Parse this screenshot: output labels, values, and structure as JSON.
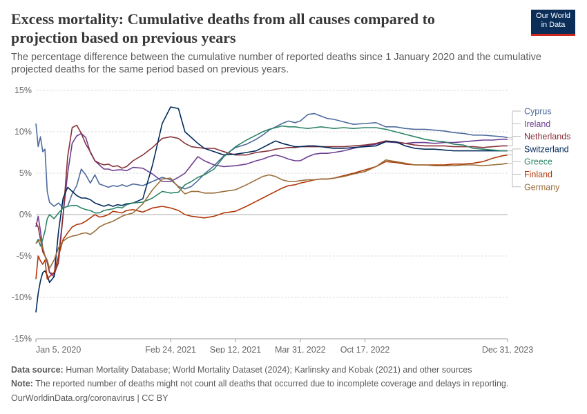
{
  "header": {
    "title": "Excess mortality: Cumulative deaths from all causes compared to projection based on previous years",
    "subtitle": "The percentage difference between the cumulative number of reported deaths since 1 January 2020 and the cumulative projected deaths for the same period based on previous years.",
    "logo_line1": "Our World",
    "logo_line2": "in Data"
  },
  "footer": {
    "source_label": "Data source:",
    "source_text": "Human Mortality Database; World Mortality Dataset (2024); Karlinsky and Kobak (2021) and other sources",
    "note_label": "Note:",
    "note_text": "The reported number of deaths might not count all deaths that occurred due to incomplete coverage and delays in reporting.",
    "credit": "OurWorldinData.org/coronavirus | CC BY"
  },
  "chart_data": {
    "type": "line",
    "title": "Excess mortality: Cumulative deaths from all causes compared to projection based on previous years",
    "xlabel": "",
    "ylabel": "",
    "x_unit": "days since 5 Jan 2020",
    "xlim": [
      0,
      1456
    ],
    "ylim": [
      -15,
      15
    ],
    "y_ticks": [
      -15,
      -10,
      -5,
      0,
      5,
      10,
      15
    ],
    "y_tick_labels": [
      "-15%",
      "-10%",
      "-5%",
      "0%",
      "5%",
      "10%",
      "15%"
    ],
    "x_ticks": [
      0,
      416,
      616,
      816,
      1016,
      1456
    ],
    "x_tick_labels": [
      "Jan 5, 2020",
      "Feb 24, 2021",
      "Sep 12, 2021",
      "Mar 31, 2022",
      "Oct 17, 2022",
      "Dec 31, 2023"
    ],
    "grid": true,
    "legend_position": "right",
    "series": [
      {
        "name": "Cyprus",
        "color": "#4c6a9c",
        "x": [
          0,
          7,
          14,
          21,
          28,
          35,
          42,
          56,
          70,
          84,
          98,
          112,
          126,
          140,
          154,
          168,
          182,
          196,
          210,
          224,
          238,
          252,
          266,
          280,
          300,
          330,
          360,
          390,
          416,
          440,
          460,
          480,
          500,
          520,
          550,
          580,
          616,
          650,
          680,
          700,
          720,
          740,
          760,
          780,
          800,
          816,
          840,
          860,
          880,
          900,
          920,
          950,
          980,
          1016,
          1050,
          1080,
          1110,
          1140,
          1170,
          1200,
          1230,
          1260,
          1290,
          1320,
          1350,
          1380,
          1410,
          1440,
          1456
        ],
        "values": [
          11.0,
          8.2,
          9.4,
          7.6,
          7.9,
          2.8,
          1.5,
          1.0,
          1.4,
          0.8,
          1.0,
          2.5,
          3.5,
          5.5,
          4.8,
          3.8,
          4.8,
          3.7,
          3.5,
          3.3,
          3.5,
          3.4,
          3.6,
          3.4,
          3.7,
          3.5,
          4.0,
          4.5,
          4.2,
          3.4,
          3.1,
          3.4,
          4.1,
          4.9,
          5.9,
          7.1,
          8.1,
          8.5,
          9.1,
          9.6,
          10.2,
          10.6,
          11.0,
          11.3,
          11.1,
          11.3,
          12.1,
          12.2,
          11.9,
          11.6,
          11.5,
          11.2,
          10.9,
          11.0,
          11.1,
          10.6,
          10.6,
          10.4,
          10.3,
          10.3,
          10.2,
          10.1,
          9.9,
          9.8,
          9.6,
          9.6,
          9.5,
          9.4,
          9.3
        ]
      },
      {
        "name": "Ireland",
        "color": "#6d3e91",
        "x": [
          0,
          7,
          14,
          21,
          28,
          35,
          42,
          56,
          70,
          84,
          98,
          112,
          126,
          140,
          154,
          168,
          182,
          196,
          210,
          224,
          238,
          252,
          266,
          280,
          300,
          330,
          360,
          390,
          416,
          440,
          460,
          480,
          500,
          520,
          550,
          580,
          616,
          650,
          680,
          700,
          720,
          740,
          760,
          780,
          800,
          816,
          840,
          860,
          880,
          900,
          920,
          950,
          980,
          1016,
          1050,
          1080,
          1110,
          1140,
          1170,
          1200,
          1230,
          1260,
          1290,
          1320,
          1350,
          1380,
          1410,
          1440,
          1456
        ],
        "values": [
          -1.5,
          -0.2,
          -2.0,
          -4.0,
          -5.0,
          -5.5,
          -7.0,
          -7.5,
          -5.0,
          0.0,
          5.0,
          8.6,
          9.5,
          9.8,
          9.3,
          7.5,
          6.5,
          6.0,
          5.5,
          5.5,
          5.3,
          5.4,
          5.4,
          5.3,
          5.7,
          5.6,
          4.9,
          4.0,
          4.0,
          4.5,
          5.0,
          6.0,
          7.0,
          6.5,
          6.0,
          5.8,
          5.9,
          6.1,
          6.5,
          6.7,
          7.0,
          7.2,
          7.0,
          6.7,
          6.5,
          6.5,
          7.0,
          7.3,
          7.4,
          7.4,
          7.5,
          7.7,
          8.0,
          8.3,
          8.5,
          8.8,
          8.7,
          8.6,
          8.7,
          8.7,
          8.6,
          8.7,
          8.7,
          8.8,
          8.9,
          9.0,
          9.0,
          9.1,
          9.1
        ]
      },
      {
        "name": "Netherlands",
        "color": "#883039",
        "x": [
          0,
          7,
          14,
          21,
          28,
          35,
          42,
          56,
          70,
          84,
          98,
          112,
          126,
          140,
          154,
          168,
          182,
          196,
          210,
          224,
          238,
          252,
          266,
          280,
          300,
          330,
          360,
          390,
          416,
          440,
          460,
          480,
          500,
          520,
          550,
          580,
          616,
          650,
          680,
          700,
          720,
          740,
          760,
          780,
          800,
          816,
          840,
          860,
          880,
          900,
          920,
          950,
          980,
          1016,
          1050,
          1080,
          1110,
          1140,
          1170,
          1200,
          1230,
          1260,
          1290,
          1320,
          1350,
          1380,
          1410,
          1440,
          1456
        ],
        "values": [
          -1.0,
          -1.5,
          -3.0,
          -4.5,
          -5.0,
          -5.8,
          -7.0,
          -7.2,
          -5.8,
          0.0,
          7.0,
          10.5,
          10.8,
          9.8,
          8.5,
          7.6,
          6.5,
          6.2,
          6.0,
          6.1,
          5.8,
          5.9,
          5.6,
          5.8,
          6.5,
          7.2,
          8.1,
          9.2,
          9.4,
          9.2,
          8.6,
          8.2,
          8.1,
          8.0,
          8.0,
          7.6,
          7.2,
          7.2,
          7.5,
          7.6,
          7.7,
          7.9,
          8.0,
          8.1,
          8.1,
          8.2,
          8.2,
          8.2,
          8.2,
          8.2,
          8.2,
          8.2,
          8.3,
          8.4,
          8.6,
          8.9,
          8.8,
          8.6,
          8.4,
          8.3,
          8.3,
          8.3,
          8.2,
          8.2,
          8.2,
          8.1,
          8.2,
          8.3,
          8.3
        ]
      },
      {
        "name": "Switzerland",
        "color": "#00295b",
        "x": [
          0,
          7,
          14,
          21,
          28,
          35,
          42,
          56,
          70,
          84,
          98,
          112,
          126,
          140,
          154,
          168,
          182,
          196,
          210,
          224,
          238,
          252,
          266,
          280,
          300,
          330,
          360,
          390,
          416,
          440,
          460,
          480,
          500,
          520,
          550,
          580,
          616,
          650,
          680,
          700,
          720,
          740,
          760,
          780,
          800,
          816,
          840,
          860,
          880,
          900,
          920,
          950,
          980,
          1016,
          1050,
          1080,
          1110,
          1140,
          1170,
          1200,
          1230,
          1260,
          1290,
          1320,
          1350,
          1380,
          1410,
          1440,
          1456
        ],
        "values": [
          -11.8,
          -9.5,
          -8.0,
          -7.0,
          -6.8,
          -7.3,
          -8.2,
          -7.5,
          -2.0,
          2.0,
          3.3,
          2.8,
          2.3,
          2.0,
          2.0,
          1.8,
          1.4,
          1.2,
          1.0,
          1.2,
          1.0,
          1.2,
          1.1,
          1.3,
          1.4,
          1.9,
          6.0,
          11.0,
          13.0,
          12.8,
          10.0,
          9.3,
          8.6,
          8.0,
          7.6,
          7.2,
          7.3,
          7.5,
          7.7,
          8.1,
          8.5,
          8.9,
          8.6,
          8.4,
          8.2,
          8.2,
          8.3,
          8.3,
          8.2,
          8.1,
          8.0,
          8.0,
          8.1,
          8.2,
          8.3,
          8.8,
          8.8,
          8.3,
          8.0,
          7.9,
          7.9,
          7.8,
          7.7,
          7.7,
          7.7,
          7.7,
          7.7,
          7.7,
          7.7
        ]
      },
      {
        "name": "Greece",
        "color": "#2c8465",
        "x": [
          0,
          7,
          14,
          21,
          28,
          35,
          42,
          56,
          70,
          84,
          98,
          112,
          126,
          140,
          154,
          168,
          182,
          196,
          210,
          224,
          238,
          252,
          266,
          280,
          300,
          330,
          360,
          390,
          416,
          440,
          460,
          480,
          500,
          520,
          550,
          580,
          616,
          650,
          680,
          700,
          720,
          740,
          760,
          780,
          800,
          816,
          840,
          860,
          880,
          900,
          920,
          950,
          980,
          1016,
          1050,
          1080,
          1110,
          1140,
          1170,
          1200,
          1230,
          1260,
          1290,
          1320,
          1350,
          1380,
          1410,
          1440,
          1456
        ],
        "values": [
          -3.5,
          -3.0,
          -3.8,
          -3.0,
          -2.0,
          -0.5,
          0.0,
          -0.5,
          0.2,
          0.8,
          1.0,
          1.1,
          1.1,
          0.8,
          0.6,
          0.5,
          0.2,
          0.2,
          0.5,
          0.6,
          0.7,
          0.9,
          0.8,
          1.2,
          1.4,
          1.5,
          2.0,
          2.8,
          2.6,
          2.7,
          3.6,
          4.0,
          4.5,
          4.8,
          5.5,
          7.0,
          8.2,
          9.0,
          9.6,
          10.0,
          10.3,
          10.5,
          10.7,
          10.6,
          10.6,
          10.5,
          10.4,
          10.5,
          10.6,
          10.5,
          10.4,
          10.5,
          10.4,
          10.5,
          10.5,
          10.3,
          10.0,
          9.7,
          9.4,
          9.1,
          8.9,
          8.8,
          8.5,
          8.4,
          8.0,
          7.9,
          7.8,
          7.7,
          7.7
        ]
      },
      {
        "name": "Finland",
        "color": "#b13507",
        "x": [
          0,
          7,
          14,
          21,
          28,
          35,
          42,
          56,
          70,
          84,
          98,
          112,
          126,
          140,
          154,
          168,
          182,
          196,
          210,
          224,
          238,
          252,
          266,
          280,
          300,
          330,
          360,
          390,
          416,
          440,
          460,
          480,
          500,
          520,
          550,
          580,
          616,
          650,
          680,
          700,
          720,
          740,
          760,
          780,
          800,
          816,
          840,
          860,
          880,
          900,
          920,
          950,
          980,
          1016,
          1050,
          1080,
          1110,
          1140,
          1170,
          1200,
          1230,
          1260,
          1290,
          1320,
          1350,
          1380,
          1410,
          1440,
          1456
        ],
        "values": [
          -7.8,
          -5.0,
          -5.6,
          -6.0,
          -5.5,
          -7.8,
          -7.5,
          -7.0,
          -5.0,
          -3.0,
          -2.2,
          -1.5,
          -1.2,
          -1.1,
          -0.8,
          -0.4,
          0.0,
          -0.3,
          -0.2,
          0.0,
          0.4,
          0.3,
          0.2,
          0.5,
          0.6,
          0.3,
          0.8,
          1.0,
          0.8,
          0.5,
          0.0,
          -0.2,
          -0.3,
          -0.4,
          -0.2,
          0.2,
          0.4,
          1.0,
          1.6,
          2.0,
          2.4,
          2.8,
          3.2,
          3.5,
          3.6,
          3.8,
          4.0,
          4.2,
          4.3,
          4.3,
          4.4,
          4.7,
          5.0,
          5.4,
          5.8,
          6.4,
          6.3,
          6.1,
          6.0,
          6.0,
          6.0,
          6.0,
          6.1,
          6.1,
          6.2,
          6.4,
          6.8,
          7.1,
          7.2
        ]
      },
      {
        "name": "Germany",
        "color": "#996d39",
        "x": [
          0,
          7,
          14,
          21,
          28,
          35,
          42,
          56,
          70,
          84,
          98,
          112,
          126,
          140,
          154,
          168,
          182,
          196,
          210,
          224,
          238,
          252,
          266,
          280,
          300,
          330,
          360,
          390,
          416,
          440,
          460,
          480,
          500,
          520,
          550,
          580,
          616,
          650,
          680,
          700,
          720,
          740,
          760,
          780,
          800,
          816,
          840,
          860,
          880,
          900,
          920,
          950,
          980,
          1016,
          1050,
          1080,
          1110,
          1140,
          1170,
          1200,
          1230,
          1260,
          1290,
          1320,
          1350,
          1380,
          1410,
          1440,
          1456
        ],
        "values": [
          -3.5,
          -3.2,
          -3.0,
          -4.0,
          -5.0,
          -5.5,
          -6.5,
          -5.5,
          -4.0,
          -3.2,
          -2.8,
          -2.6,
          -2.5,
          -2.3,
          -2.2,
          -2.4,
          -2.0,
          -1.5,
          -1.2,
          -1.0,
          -0.8,
          -0.5,
          -0.2,
          0.0,
          0.2,
          1.3,
          3.0,
          4.3,
          4.4,
          3.3,
          2.5,
          2.8,
          2.8,
          2.6,
          2.6,
          2.8,
          3.0,
          3.6,
          4.2,
          4.6,
          4.8,
          4.6,
          4.2,
          4.0,
          4.0,
          4.1,
          4.2,
          4.2,
          4.3,
          4.3,
          4.4,
          4.6,
          4.9,
          5.2,
          5.8,
          6.6,
          6.4,
          6.2,
          6.0,
          6.0,
          5.9,
          5.9,
          5.9,
          6.0,
          6.0,
          5.9,
          6.0,
          6.1,
          6.2
        ]
      }
    ]
  }
}
